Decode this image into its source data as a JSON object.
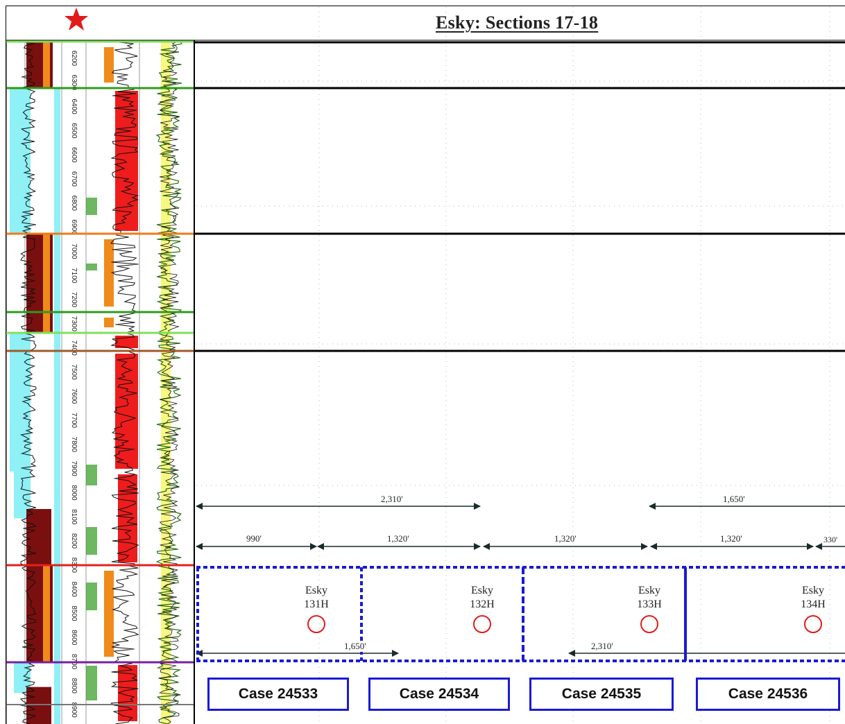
{
  "title": "Esky: Sections 17-18",
  "depth_ticks": [
    "6200",
    "6300",
    "6400",
    "6500",
    "6600",
    "6700",
    "6800",
    "6900",
    "7000",
    "7100",
    "7200",
    "7300",
    "7400",
    "7500",
    "7600",
    "7700",
    "7800",
    "7900",
    "8000",
    "8100",
    "8200",
    "8300",
    "8400",
    "8500",
    "8600",
    "8700",
    "8800",
    "8900"
  ],
  "star_icon": "star-icon",
  "colors": {
    "star": "#e11b1b",
    "case_border": "#1a1ad6",
    "dashed_border": "#1a1ad6",
    "well_circle": "#e11b1b",
    "gr_fill_dark": "#7a0f0f",
    "resistivity_fill": "#ee1c1c",
    "cyan_fill": "#8ff0f5",
    "orange_fill": "#f08a1a",
    "yellow_fill": "#f2f21a",
    "marker_green": "#2f9a1c",
    "marker_lime": "#7fe05a",
    "marker_orange": "#f07a1a",
    "marker_red": "#e32020",
    "marker_purple": "#7a1fa0",
    "marker_gray": "#777777",
    "marker_brown": "#a05a2a"
  },
  "dimensions": {
    "top_left": "2,310'",
    "top_right": "1,650'",
    "row": [
      "990'",
      "1,320'",
      "1,320'",
      "1,320'",
      "330'"
    ],
    "bottom_left": "1,650'",
    "bottom_right": "2,310'"
  },
  "wells": [
    {
      "name": "Esky",
      "number": "131H"
    },
    {
      "name": "Esky",
      "number": "132H"
    },
    {
      "name": "Esky",
      "number": "133H"
    },
    {
      "name": "Esky",
      "number": "134H"
    }
  ],
  "cases": [
    "Case 24533",
    "Case 24534",
    "Case 24535",
    "Case 24536"
  ]
}
